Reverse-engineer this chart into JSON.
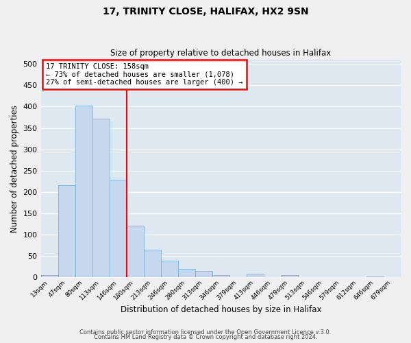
{
  "title": "17, TRINITY CLOSE, HALIFAX, HX2 9SN",
  "subtitle": "Size of property relative to detached houses in Halifax",
  "xlabel": "Distribution of detached houses by size in Halifax",
  "ylabel": "Number of detached properties",
  "bar_labels": [
    "13sqm",
    "47sqm",
    "80sqm",
    "113sqm",
    "146sqm",
    "180sqm",
    "213sqm",
    "246sqm",
    "280sqm",
    "313sqm",
    "346sqm",
    "379sqm",
    "413sqm",
    "446sqm",
    "479sqm",
    "513sqm",
    "546sqm",
    "579sqm",
    "612sqm",
    "646sqm",
    "679sqm"
  ],
  "bar_values": [
    5,
    215,
    403,
    372,
    228,
    120,
    65,
    39,
    20,
    14,
    5,
    0,
    8,
    0,
    5,
    0,
    0,
    0,
    0,
    2,
    0
  ],
  "bar_color": "#c5d8ed",
  "bar_edgecolor": "#7ab4d8",
  "fig_facecolor": "#f0f0f0",
  "ax_facecolor": "#dde8f0",
  "grid_color": "#ffffff",
  "ylim": [
    0,
    510
  ],
  "yticks": [
    0,
    50,
    100,
    150,
    200,
    250,
    300,
    350,
    400,
    450,
    500
  ],
  "property_line_x": 4.5,
  "annotation_title": "17 TRINITY CLOSE: 158sqm",
  "annotation_line1": "← 73% of detached houses are smaller (1,078)",
  "annotation_line2": "27% of semi-detached houses are larger (400) →",
  "footer_line1": "Contains HM Land Registry data © Crown copyright and database right 2024.",
  "footer_line2": "Contains public sector information licensed under the Open Government Licence v.3.0."
}
